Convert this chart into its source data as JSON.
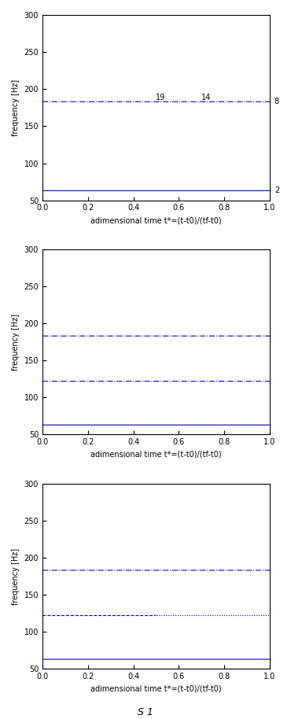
{
  "xlim": [
    0,
    1
  ],
  "ylim": [
    50,
    300
  ],
  "yticks": [
    50,
    100,
    150,
    200,
    250,
    300
  ],
  "xticks": [
    0,
    0.2,
    0.4,
    0.6,
    0.8,
    1.0
  ],
  "xtick_labels": [
    "0",
    "0.2",
    "0.4",
    "0.6",
    "0.8",
    "1"
  ],
  "xlabel": "adimensional time t*=(t-t0)/(tf-t0)",
  "ylabel": "frequency [Hz]",
  "line_color": "#0000cc",
  "freq1": 183,
  "freq2": 122,
  "freq3": 63,
  "bottom_label": "S 1",
  "fig_width": 3.7,
  "fig_height": 9.14,
  "dpi": 100
}
